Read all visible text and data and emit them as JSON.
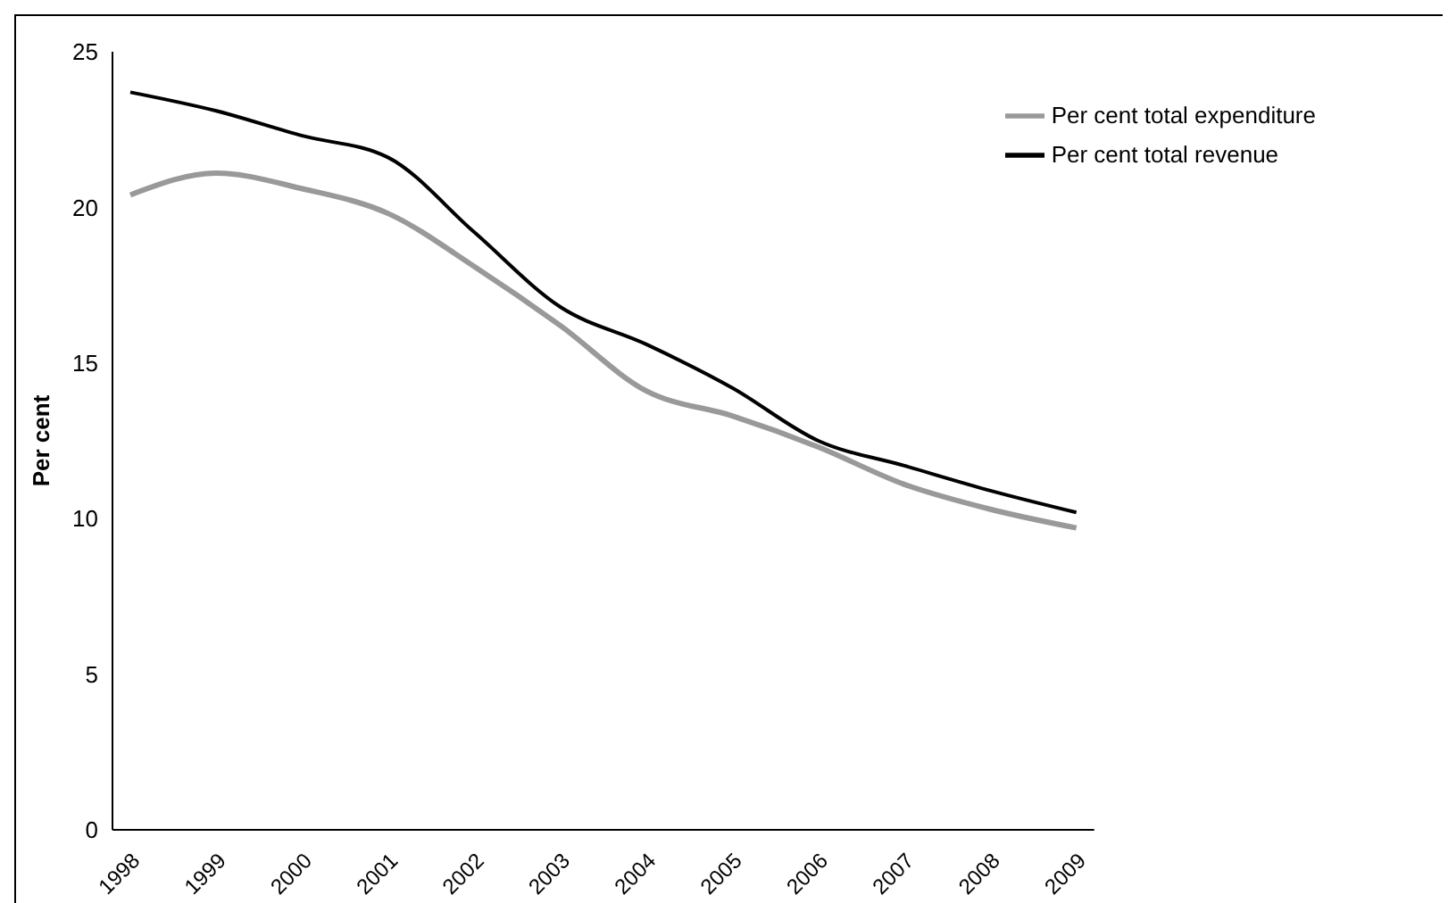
{
  "chart_data": {
    "type": "line",
    "ylabel": "Per cent",
    "categories": [
      "1998",
      "1999",
      "2000",
      "2001",
      "2002",
      "2003",
      "2004",
      "2005",
      "2006",
      "2007",
      "2008",
      "2009"
    ],
    "series": [
      {
        "name": "Per cent total revenue",
        "color": "#000000",
        "values": [
          23.7,
          23.1,
          22.3,
          21.6,
          19.2,
          16.8,
          15.6,
          14.2,
          12.5,
          11.7,
          10.9,
          10.2
        ]
      },
      {
        "name": "Per cent total expenditure",
        "color": "#999999",
        "values": [
          20.4,
          21.1,
          20.6,
          19.8,
          18.1,
          16.2,
          14.1,
          13.3,
          12.3,
          11.1,
          10.3,
          9.7
        ]
      }
    ],
    "ylim": [
      0,
      25
    ],
    "yticks": [
      0,
      5,
      10,
      15,
      20,
      25
    ],
    "grid": false,
    "legend": "top right",
    "marker": "none",
    "line_style": "solid"
  }
}
